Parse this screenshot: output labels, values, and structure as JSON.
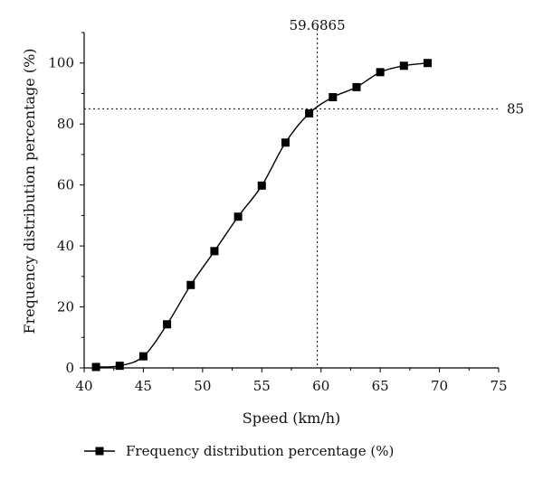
{
  "chart_data": {
    "type": "line",
    "xlabel": "Speed (km/h)",
    "ylabel": "Frequency distribution percentage (%)",
    "xlim": [
      40,
      75
    ],
    "ylim": [
      0,
      110
    ],
    "x_ticks": [
      "40",
      "45",
      "50",
      "55",
      "60",
      "65",
      "70",
      "75"
    ],
    "y_ticks": [
      "0",
      "20",
      "40",
      "60",
      "80",
      "100"
    ],
    "grid": false,
    "legend": "bottom",
    "series": [
      {
        "name": "Frequency distribution percentage (%)",
        "marker": "square",
        "color": "#000000",
        "x": [
          41,
          43,
          45,
          47,
          49,
          51,
          53,
          55,
          57,
          59,
          61,
          63,
          65,
          67,
          69
        ],
        "y": [
          0.3,
          0.7,
          3.8,
          14.3,
          27.2,
          38.3,
          49.6,
          59.8,
          73.9,
          83.5,
          88.8,
          92.1,
          97.0,
          99.1,
          100.0
        ]
      }
    ],
    "annotations": [
      {
        "type": "vline",
        "x": 59.6865,
        "label": "59.6865"
      },
      {
        "type": "hline",
        "y": 85,
        "label": "85"
      }
    ]
  }
}
